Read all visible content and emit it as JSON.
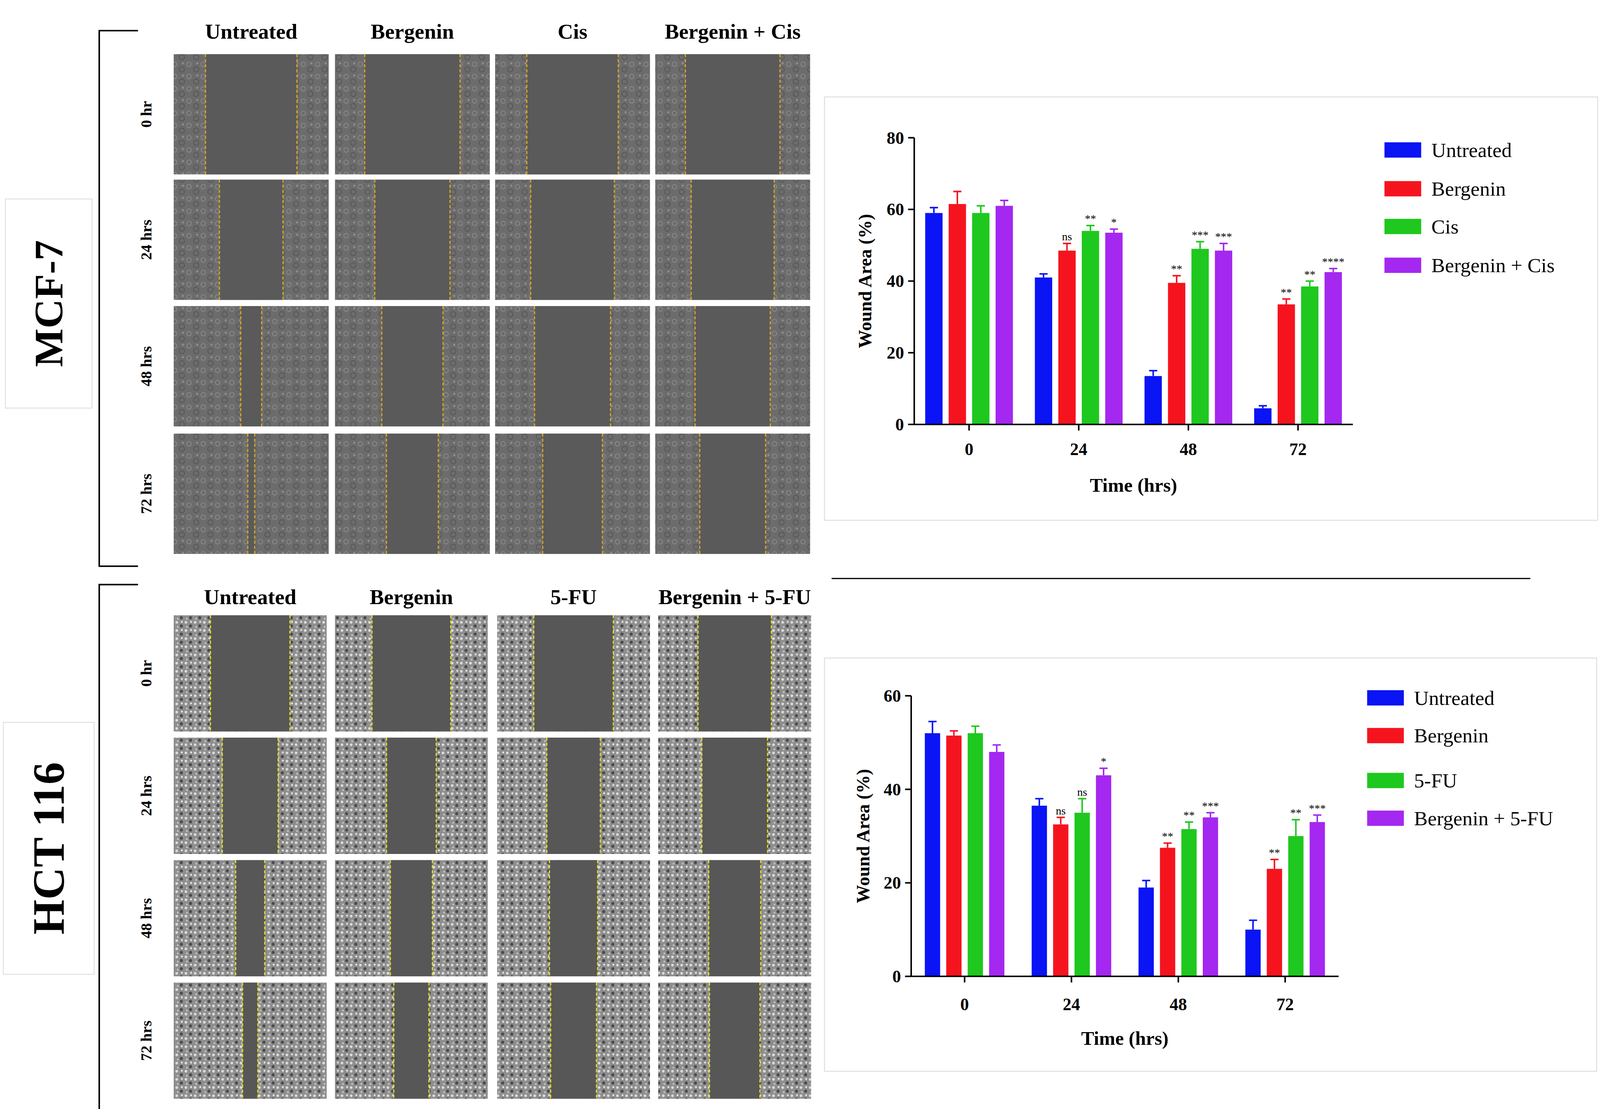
{
  "figure": {
    "sections": [
      {
        "cell_line": "MCF-7",
        "columns": [
          "Untreated",
          "Bergenin",
          "Cis",
          "Bergenin + Cis"
        ],
        "rows": [
          "0 hr",
          "24 hrs",
          "48 hrs",
          "72 hrs"
        ]
      },
      {
        "cell_line": "HCT 116",
        "columns": [
          "Untreated",
          "Bergenin",
          "5-FU",
          "Bergenin + 5-FU"
        ],
        "rows": [
          "0 hr",
          "24 hrs",
          "48 hrs",
          "72 hrs"
        ]
      }
    ]
  },
  "chart_data": [
    {
      "type": "bar",
      "x_label": "Time (hrs)",
      "y_label": "Wound Area (%)",
      "categories": [
        "0",
        "24",
        "48",
        "72"
      ],
      "ylim": [
        0,
        80
      ],
      "yticks": [
        0,
        20,
        40,
        60,
        80
      ],
      "grid": false,
      "legend": "right",
      "series": [
        {
          "name": "Untreated",
          "color": "#0a14f5",
          "values": [
            59,
            41,
            13.5,
            4.5
          ],
          "errors": [
            1.5,
            1,
            1.5,
            0.7
          ],
          "significance": [
            null,
            null,
            null,
            null
          ]
        },
        {
          "name": "Bergenin",
          "color": "#f5141e",
          "values": [
            61.5,
            48.5,
            39.5,
            33.5
          ],
          "errors": [
            3.5,
            2,
            2,
            1.5
          ],
          "significance": [
            null,
            "ns",
            "**",
            "**"
          ]
        },
        {
          "name": "Cis",
          "color": "#1ec81e",
          "values": [
            59,
            54,
            49,
            38.5
          ],
          "errors": [
            2,
            1.5,
            2,
            1.5
          ],
          "significance": [
            null,
            "**",
            "***",
            "**"
          ]
        },
        {
          "name": "Bergenin + Cis",
          "color": "#a428f0",
          "values": [
            61,
            53.5,
            48.5,
            42.5
          ],
          "errors": [
            1.5,
            1,
            2,
            1
          ],
          "significance": [
            null,
            "*",
            "***",
            "****"
          ]
        }
      ]
    },
    {
      "type": "bar",
      "x_label": "Time (hrs)",
      "y_label": "Wound Area (%)",
      "categories": [
        "0",
        "24",
        "48",
        "72"
      ],
      "ylim": [
        0,
        60
      ],
      "yticks": [
        0,
        20,
        40,
        60
      ],
      "grid": false,
      "legend": "right",
      "series": [
        {
          "name": "Untreated",
          "color": "#0a14f5",
          "values": [
            52,
            36.5,
            19,
            10
          ],
          "errors": [
            2.5,
            1.5,
            1.5,
            2
          ],
          "significance": [
            null,
            null,
            null,
            null
          ]
        },
        {
          "name": "Bergenin",
          "color": "#f5141e",
          "values": [
            51.5,
            32.5,
            27.5,
            23
          ],
          "errors": [
            1,
            1.5,
            1,
            2
          ],
          "significance": [
            null,
            "ns",
            "**",
            "**"
          ]
        },
        {
          "name": "5-FU",
          "color": "#1ec81e",
          "values": [
            52,
            35,
            31.5,
            30
          ],
          "errors": [
            1.5,
            3,
            1.5,
            3.5
          ],
          "significance": [
            null,
            "ns",
            "**",
            "**"
          ]
        },
        {
          "name": "Bergenin + 5-FU",
          "color": "#a428f0",
          "values": [
            48,
            43,
            34,
            33
          ],
          "errors": [
            1.5,
            1.5,
            1,
            1.5
          ],
          "significance": [
            null,
            "*",
            "***",
            "***"
          ]
        }
      ]
    }
  ]
}
